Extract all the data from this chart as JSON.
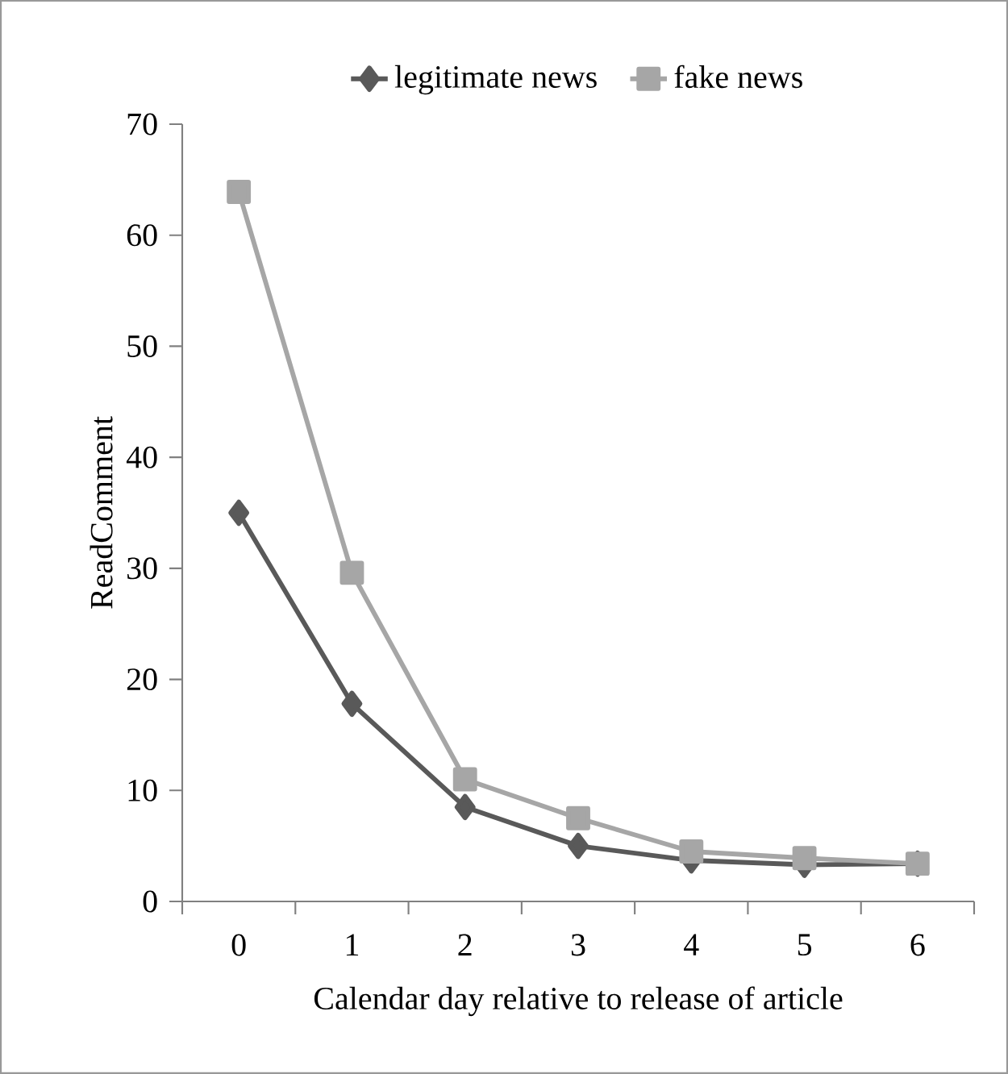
{
  "chart_data": {
    "type": "line",
    "xlabel": "Calendar day relative to release of article",
    "ylabel": "ReadComment",
    "categories": [
      "0",
      "1",
      "2",
      "3",
      "4",
      "5",
      "6"
    ],
    "series": [
      {
        "name": "legitimate news",
        "color": "#595959",
        "marker": "diamond",
        "values": [
          35,
          17.8,
          8.5,
          5.0,
          3.7,
          3.3,
          3.4
        ]
      },
      {
        "name": "fake news",
        "color": "#a6a6a6",
        "marker": "square",
        "values": [
          63.9,
          29.6,
          11,
          7.5,
          4.5,
          3.9,
          3.4
        ]
      }
    ],
    "ylim": [
      0,
      70
    ],
    "yticks": [
      0,
      10,
      20,
      30,
      40,
      50,
      60,
      70
    ],
    "grid": false,
    "legend": "top"
  }
}
